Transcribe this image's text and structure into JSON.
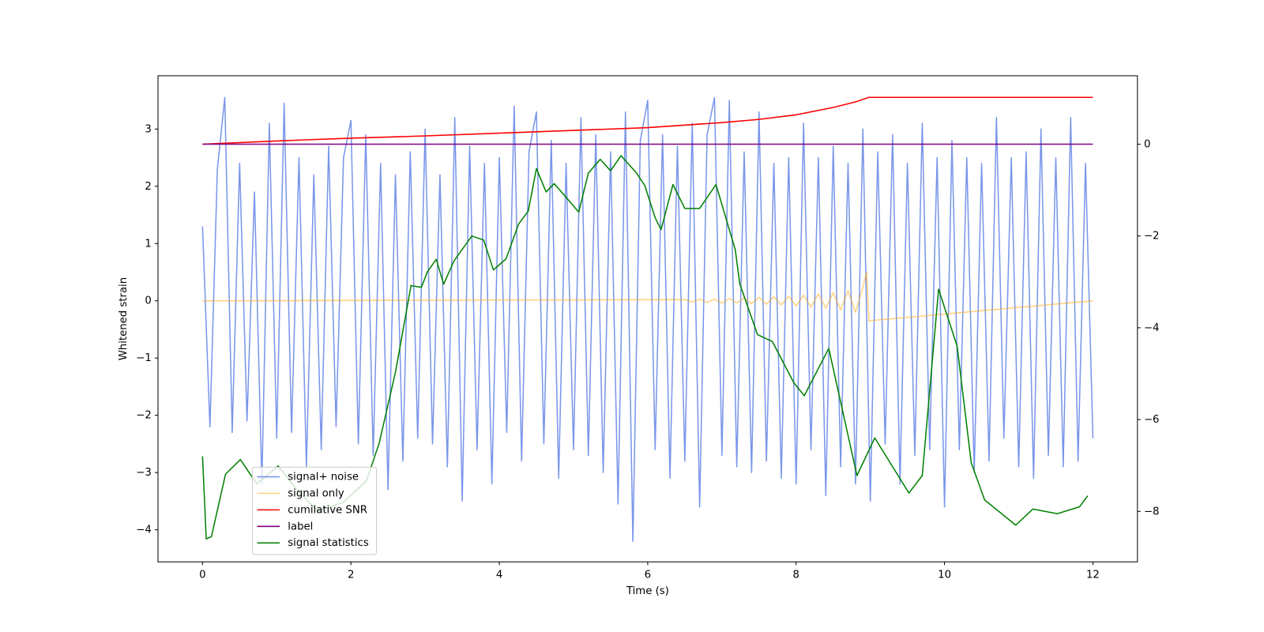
{
  "chart_data": {
    "type": "line",
    "xlabel": "Time (s)",
    "ylabel": "Whitened strain",
    "xlim": [
      -0.6,
      12.6
    ],
    "xticks": [
      0,
      2,
      4,
      6,
      8,
      10,
      12
    ],
    "ylim": [
      -4.56,
      3.93
    ],
    "yticks": [
      {
        "value": -4,
        "label": "−4"
      },
      {
        "value": -3,
        "label": "−3"
      },
      {
        "value": -2,
        "label": "−2"
      },
      {
        "value": -1,
        "label": "−1"
      },
      0,
      1,
      2,
      3
    ],
    "y2lim": [
      -9.1,
      1.49
    ],
    "y2ticks": [
      {
        "value": -8,
        "label": "−8"
      },
      {
        "value": -6,
        "label": "−6"
      },
      {
        "value": -4,
        "label": "−4"
      },
      {
        "value": -2,
        "label": "−2"
      },
      0
    ],
    "grid": false,
    "legend": "lower left",
    "series": [
      {
        "name": "signal+ noise",
        "color": "#4169e1",
        "alpha": 0.7,
        "x": [
          0,
          0.1,
          0.2,
          0.3,
          0.4,
          0.5,
          0.6,
          0.7,
          0.8,
          0.9,
          1,
          1.1,
          1.2,
          1.3,
          1.4,
          1.5,
          1.6,
          1.7,
          1.8,
          1.9,
          2,
          2.1,
          2.2,
          2.3,
          2.4,
          2.5,
          2.6,
          2.7,
          2.8,
          2.9,
          3,
          3.1,
          3.2,
          3.3,
          3.4,
          3.5,
          3.6,
          3.7,
          3.8,
          3.9,
          4,
          4.1,
          4.2,
          4.3,
          4.4,
          4.5,
          4.6,
          4.7,
          4.8,
          4.9,
          5,
          5.1,
          5.2,
          5.3,
          5.4,
          5.5,
          5.6,
          5.7,
          5.8,
          5.9,
          6,
          6.1,
          6.2,
          6.3,
          6.4,
          6.5,
          6.6,
          6.7,
          6.8,
          6.9,
          7,
          7.1,
          7.2,
          7.3,
          7.4,
          7.5,
          7.6,
          7.7,
          7.8,
          7.9,
          8,
          8.1,
          8.2,
          8.3,
          8.4,
          8.5,
          8.6,
          8.7,
          8.8,
          8.9,
          9,
          9.1,
          9.2,
          9.3,
          9.4,
          9.5,
          9.6,
          9.7,
          9.8,
          9.9,
          10,
          10.1,
          10.2,
          10.3,
          10.4,
          10.5,
          10.6,
          10.7,
          10.8,
          10.9,
          11,
          11.1,
          11.2,
          11.3,
          11.4,
          11.5,
          11.6,
          11.7,
          11.8,
          11.9,
          12
        ],
        "values": [
          1.3,
          -2.2,
          2.3,
          3.55,
          -2.3,
          2.4,
          -2.1,
          1.9,
          -3.2,
          3.1,
          -2.4,
          3.45,
          -2.3,
          2.5,
          -2.9,
          2.2,
          -2.6,
          2.7,
          -2.2,
          2.5,
          3.15,
          -2.5,
          2.9,
          -2.7,
          2.4,
          -3.3,
          2.2,
          -2.8,
          2.6,
          -2.4,
          3.0,
          -2.5,
          2.2,
          -2.9,
          3.2,
          -3.5,
          2.7,
          -2.6,
          2.4,
          -3.2,
          2.5,
          -2.3,
          3.4,
          -2.8,
          2.6,
          3.3,
          -2.5,
          2.8,
          -3.1,
          2.4,
          -2.6,
          3.2,
          -2.7,
          2.9,
          -3.0,
          2.6,
          -3.55,
          3.3,
          -4.2,
          2.8,
          3.5,
          -2.6,
          2.9,
          -3.1,
          2.7,
          -2.8,
          3.1,
          -3.6,
          2.9,
          3.55,
          -2.7,
          3.5,
          -2.9,
          2.6,
          -3.0,
          3.3,
          -2.8,
          2.4,
          -3.1,
          2.5,
          -3.2,
          3.1,
          -2.6,
          2.5,
          -3.4,
          2.7,
          -2.9,
          2.4,
          -3.2,
          3.0,
          -3.5,
          2.6,
          -2.5,
          2.9,
          -3.2,
          2.4,
          -2.7,
          3.1,
          -2.6,
          2.5,
          -3.6,
          2.8,
          -2.6,
          2.5,
          -3.0,
          2.4,
          -2.8,
          3.2,
          -2.4,
          2.5,
          -2.9,
          2.6,
          -3.1,
          3.0,
          -2.7,
          2.5,
          -2.9,
          3.2,
          -2.8,
          2.4,
          -2.4
        ]
      },
      {
        "name": "signal only",
        "color": "#ffa500",
        "alpha": 0.5,
        "x": [
          0,
          6.5,
          6.6,
          6.7,
          6.8,
          6.9,
          7,
          7.1,
          7.2,
          7.3,
          7.4,
          7.5,
          7.6,
          7.7,
          7.8,
          7.9,
          8,
          8.1,
          8.2,
          8.3,
          8.4,
          8.5,
          8.6,
          8.7,
          8.8,
          8.9,
          8.95,
          8.98,
          12
        ],
        "values": [
          0,
          0.02,
          -0.02,
          0.03,
          -0.03,
          0.03,
          -0.04,
          0.04,
          -0.04,
          0.05,
          -0.05,
          0.06,
          -0.06,
          0.07,
          -0.07,
          0.08,
          -0.09,
          0.1,
          -0.11,
          0.12,
          -0.13,
          0.14,
          -0.16,
          0.18,
          -0.2,
          0.24,
          0.5,
          -0.35,
          0
        ]
      },
      {
        "name": "cumilative SNR",
        "color": "#ff0000",
        "axis": "y2",
        "x": [
          0,
          1,
          2,
          3,
          4,
          5,
          6,
          7,
          7.5,
          8,
          8.5,
          8.8,
          8.98,
          12
        ],
        "values": [
          0,
          0.07,
          0.13,
          0.18,
          0.24,
          0.3,
          0.36,
          0.47,
          0.54,
          0.64,
          0.8,
          0.92,
          1.02,
          1.02
        ]
      },
      {
        "name": "label",
        "color": "#800080",
        "axis": "y2",
        "x": [
          0,
          12
        ],
        "values": [
          0,
          0
        ]
      },
      {
        "name": "signal statistics",
        "color": "#008000",
        "axis": "y2",
        "x": [
          0,
          0.05,
          0.12,
          0.31,
          0.51,
          0.73,
          1.02,
          1.29,
          1.56,
          1.9,
          2.21,
          2.38,
          2.6,
          2.81,
          2.95,
          3.03,
          3.15,
          3.25,
          3.39,
          3.63,
          3.79,
          3.92,
          4.09,
          4.26,
          4.39,
          4.5,
          4.63,
          4.74,
          4.88,
          5.07,
          5.2,
          5.36,
          5.5,
          5.64,
          5.85,
          5.96,
          6.1,
          6.18,
          6.34,
          6.5,
          6.7,
          6.92,
          7.18,
          7.24,
          7.48,
          7.68,
          7.97,
          8.11,
          8.44,
          8.82,
          9.06,
          9.52,
          9.7,
          9.92,
          10.17,
          10.36,
          10.54,
          10.96,
          11.19,
          11.52,
          11.82,
          11.93
        ],
        "values": [
          -6.8,
          -8.6,
          -8.55,
          -7.19,
          -6.87,
          -7.4,
          -7.01,
          -7.57,
          -8.0,
          -7.8,
          -7.33,
          -6.52,
          -4.97,
          -3.08,
          -3.12,
          -2.78,
          -2.51,
          -3.05,
          -2.54,
          -2.0,
          -2.09,
          -2.74,
          -2.5,
          -1.74,
          -1.46,
          -0.53,
          -1.04,
          -0.86,
          -1.12,
          -1.48,
          -0.63,
          -0.33,
          -0.58,
          -0.25,
          -0.63,
          -0.9,
          -1.6,
          -1.86,
          -0.88,
          -1.4,
          -1.4,
          -0.88,
          -2.3,
          -3.04,
          -4.15,
          -4.3,
          -5.2,
          -5.48,
          -4.45,
          -7.22,
          -6.4,
          -7.6,
          -7.22,
          -3.16,
          -4.4,
          -6.94,
          -7.75,
          -8.3,
          -7.95,
          -8.05,
          -7.9,
          -7.66
        ]
      }
    ]
  }
}
